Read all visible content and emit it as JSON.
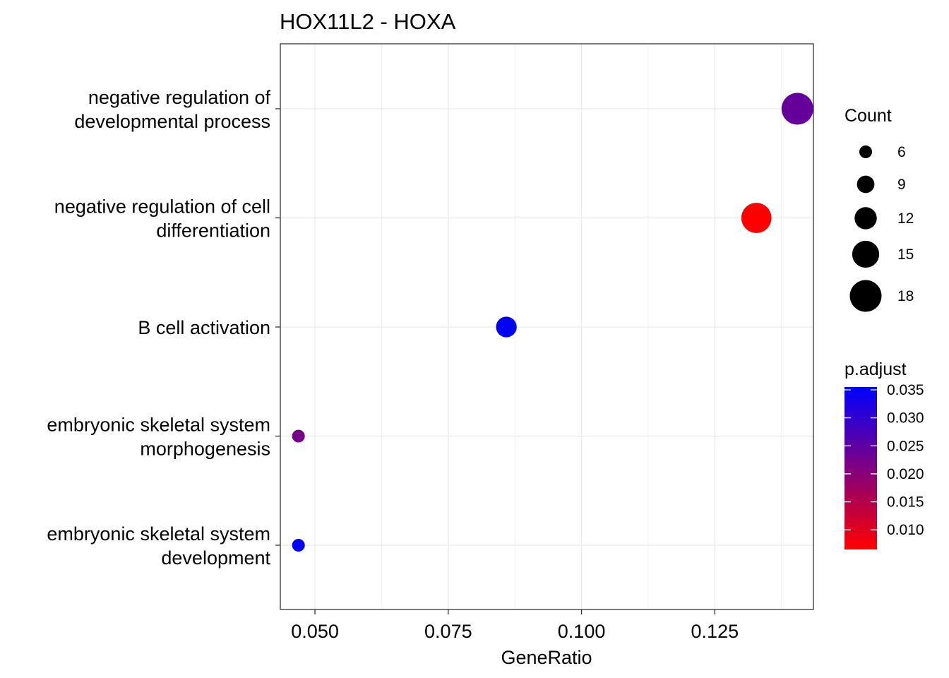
{
  "chart_data": {
    "type": "scatter",
    "title": "HOX11L2 - HOXA",
    "xlabel": "GeneRatio",
    "ylabel": "",
    "xlim": [
      0.0435,
      0.1435
    ],
    "x_ticks": [
      0.05,
      0.075,
      0.1,
      0.125
    ],
    "x_tick_labels": [
      "0.050",
      "0.075",
      "0.100",
      "0.125"
    ],
    "grid": true,
    "legend_position": "right",
    "categories": [
      [
        "negative regulation of",
        "developmental process"
      ],
      [
        "negative regulation of cell",
        "differentiation"
      ],
      [
        "B cell activation"
      ],
      [
        "embryonic skeletal system",
        "morphogenesis"
      ],
      [
        "embryonic skeletal system",
        "development"
      ]
    ],
    "points": [
      {
        "x": 0.1405,
        "count": 18,
        "p_adjust": 0.024
      },
      {
        "x": 0.1328,
        "count": 17,
        "p_adjust": 0.0065
      },
      {
        "x": 0.0859,
        "count": 11,
        "p_adjust": 0.0355
      },
      {
        "x": 0.0469,
        "count": 6,
        "p_adjust": 0.022
      },
      {
        "x": 0.0469,
        "count": 6,
        "p_adjust": 0.0355
      }
    ],
    "size_legend": {
      "title": "Count",
      "values": [
        6,
        9,
        12,
        15,
        18
      ],
      "labels": [
        "6",
        "9",
        "12",
        "15",
        "18"
      ]
    },
    "color_legend": {
      "title": "p.adjust",
      "min": 0.0065,
      "max": 0.0355,
      "ticks": [
        0.035,
        0.03,
        0.025,
        0.02,
        0.015,
        0.01
      ],
      "tick_labels": [
        "0.035",
        "0.030",
        "0.025",
        "0.020",
        "0.015",
        "0.010"
      ],
      "low_color": "#ff0000",
      "high_color": "#0000ff"
    }
  }
}
